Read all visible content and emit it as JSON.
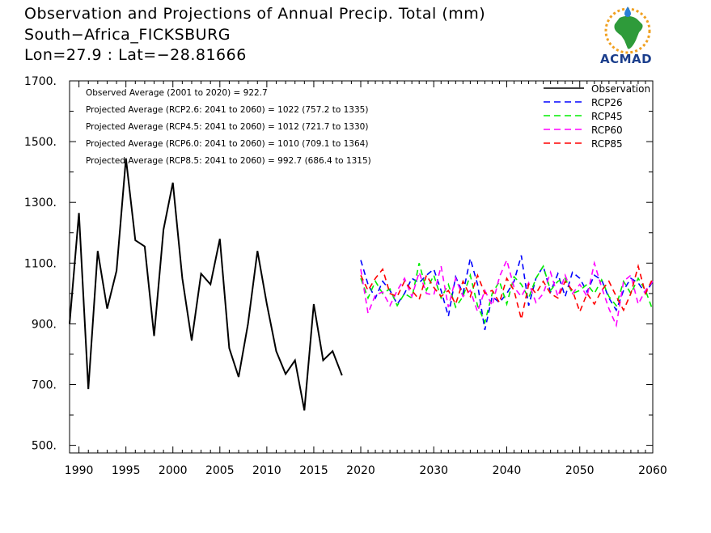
{
  "titles": {
    "line1": "Observation and Projections of Annual Precip. Total (mm)",
    "line2": "South−Africa_FICKSBURG",
    "line3": "Lon=27.9 : Lat=−28.81666"
  },
  "logo": {
    "text": "ACMAD",
    "icon": "africa-map-logo-icon"
  },
  "annotations": [
    "Observed Average (2001 to 2020) = 922.7",
    "Projected Average (RCP2.6: 2041 to 2060) = 1022 (757.2 to 1335)",
    "Projected Average (RCP4.5: 2041 to 2060) = 1012 (721.7 to 1330)",
    "Projected Average (RCP6.0: 2041 to 2060) = 1010 (709.1 to 1364)",
    "Projected Average (RCP8.5: 2041 to 2060) = 992.7 (686.4 to 1315)"
  ],
  "chart_data": {
    "type": "line",
    "xlim": [
      1989,
      2060
    ],
    "ylim": [
      475,
      1700
    ],
    "yticks": [
      500,
      700,
      900,
      1100,
      1300,
      1500,
      1700
    ],
    "ytick_labels": [
      "500.",
      "700.",
      "900.",
      "1100.",
      "1300.",
      "1500.",
      "1700."
    ],
    "xticks": [
      1990,
      1995,
      2000,
      2005,
      2010,
      2015,
      2020,
      2030,
      2040,
      2050,
      2060
    ],
    "xtick_labels": [
      "1990",
      "1995",
      "2000",
      "2005",
      "2010",
      "2015",
      "2020",
      "2030",
      "2040",
      "2050",
      "2060"
    ],
    "x_split": {
      "left_range": [
        1989,
        2020
      ],
      "right_range": [
        2020,
        2060
      ]
    },
    "legend_position": "top-right",
    "series": [
      {
        "name": "Observation",
        "color": "#000000",
        "dash": "solid",
        "x": [
          1989,
          1990,
          1991,
          1992,
          1993,
          1994,
          1995,
          1996,
          1997,
          1998,
          1999,
          2000,
          2001,
          2002,
          2003,
          2004,
          2005,
          2006,
          2007,
          2008,
          2009,
          2010,
          2011,
          2012,
          2013,
          2014,
          2015,
          2016,
          2017,
          2018,
          2019
        ],
        "values": [
          900,
          1265,
          685,
          1140,
          950,
          1075,
          1445,
          1175,
          1155,
          860,
          1210,
          1365,
          1050,
          845,
          1065,
          1030,
          1180,
          820,
          725,
          900,
          1140,
          965,
          810,
          735,
          780,
          615,
          965,
          780,
          810,
          730,
          null
        ]
      },
      {
        "name": "RCP26",
        "color": "#0000ff",
        "dash": "dashed",
        "x": [
          2020,
          2021,
          2022,
          2023,
          2024,
          2025,
          2026,
          2027,
          2028,
          2029,
          2030,
          2031,
          2032,
          2033,
          2034,
          2035,
          2036,
          2037,
          2038,
          2039,
          2040,
          2041,
          2042,
          2043,
          2044,
          2045,
          2046,
          2047,
          2048,
          2049,
          2050,
          2051,
          2052,
          2053,
          2054,
          2055,
          2056,
          2057,
          2058,
          2059,
          2060
        ],
        "values": [
          1110,
          1030,
          985,
          1040,
          1010,
          965,
          1000,
          1050,
          1035,
          1060,
          1080,
          1010,
          925,
          1055,
          1000,
          1115,
          1030,
          880,
          990,
          970,
          1000,
          1040,
          1125,
          960,
          1050,
          1090,
          1005,
          1065,
          990,
          1070,
          1050,
          1005,
          1060,
          1045,
          985,
          945,
          1010,
          1050,
          1035,
          1000,
          1040
        ]
      },
      {
        "name": "RCP45",
        "color": "#00ee00",
        "dash": "dashed",
        "x": [
          2020,
          2021,
          2022,
          2023,
          2024,
          2025,
          2026,
          2027,
          2028,
          2029,
          2030,
          2031,
          2032,
          2033,
          2034,
          2035,
          2036,
          2037,
          2038,
          2039,
          2040,
          2041,
          2042,
          2043,
          2044,
          2045,
          2046,
          2047,
          2048,
          2049,
          2050,
          2051,
          2052,
          2053,
          2054,
          2055,
          2056,
          2057,
          2058,
          2059,
          2060
        ],
        "values": [
          1050,
          985,
          1040,
          1000,
          1015,
          960,
          1000,
          985,
          1100,
          1010,
          1060,
          985,
          1030,
          955,
          990,
          1060,
          960,
          905,
          1000,
          1040,
          965,
          1055,
          1030,
          985,
          1050,
          1090,
          1010,
          1040,
          1050,
          1000,
          1010,
          1030,
          1000,
          1045,
          990,
          960,
          1040,
          1000,
          1050,
          1010,
          945
        ]
      },
      {
        "name": "RCP60",
        "color": "#ff00ff",
        "dash": "dashed",
        "x": [
          2020,
          2021,
          2022,
          2023,
          2024,
          2025,
          2026,
          2027,
          2028,
          2029,
          2030,
          2031,
          2032,
          2033,
          2034,
          2035,
          2036,
          2037,
          2038,
          2039,
          2040,
          2041,
          2042,
          2043,
          2044,
          2045,
          2046,
          2047,
          2048,
          2049,
          2050,
          2051,
          2052,
          2053,
          2054,
          2055,
          2056,
          2057,
          2058,
          2059,
          2060
        ],
        "values": [
          1080,
          935,
          995,
          1005,
          960,
          1010,
          1050,
          990,
          1070,
          1000,
          995,
          1090,
          955,
          1050,
          990,
          1010,
          940,
          1010,
          960,
          1055,
          1110,
          1020,
          990,
          1035,
          970,
          1000,
          1070,
          990,
          1060,
          1000,
          1030,
          990,
          1100,
          1020,
          950,
          895,
          1040,
          1060,
          965,
          1010,
          1040
        ]
      },
      {
        "name": "RCP85",
        "color": "#ff0000",
        "dash": "dashed",
        "x": [
          2020,
          2021,
          2022,
          2023,
          2024,
          2025,
          2026,
          2027,
          2028,
          2029,
          2030,
          2031,
          2032,
          2033,
          2034,
          2035,
          2036,
          2037,
          2038,
          2039,
          2040,
          2041,
          2042,
          2043,
          2044,
          2045,
          2046,
          2047,
          2048,
          2049,
          2050,
          2051,
          2052,
          2053,
          2054,
          2055,
          2056,
          2057,
          2058,
          2059,
          2060
        ],
        "values": [
          1060,
          1010,
          1050,
          1080,
          1000,
          990,
          1040,
          1010,
          980,
          1060,
          1020,
          990,
          1010,
          965,
          1040,
          990,
          1060,
          1000,
          1010,
          970,
          1050,
          1010,
          915,
          1030,
          1000,
          1040,
          1000,
          985,
          1040,
          1010,
          940,
          1000,
          965,
          1010,
          1040,
          990,
          945,
          1000,
          1090,
          1000,
          1050
        ]
      }
    ]
  }
}
